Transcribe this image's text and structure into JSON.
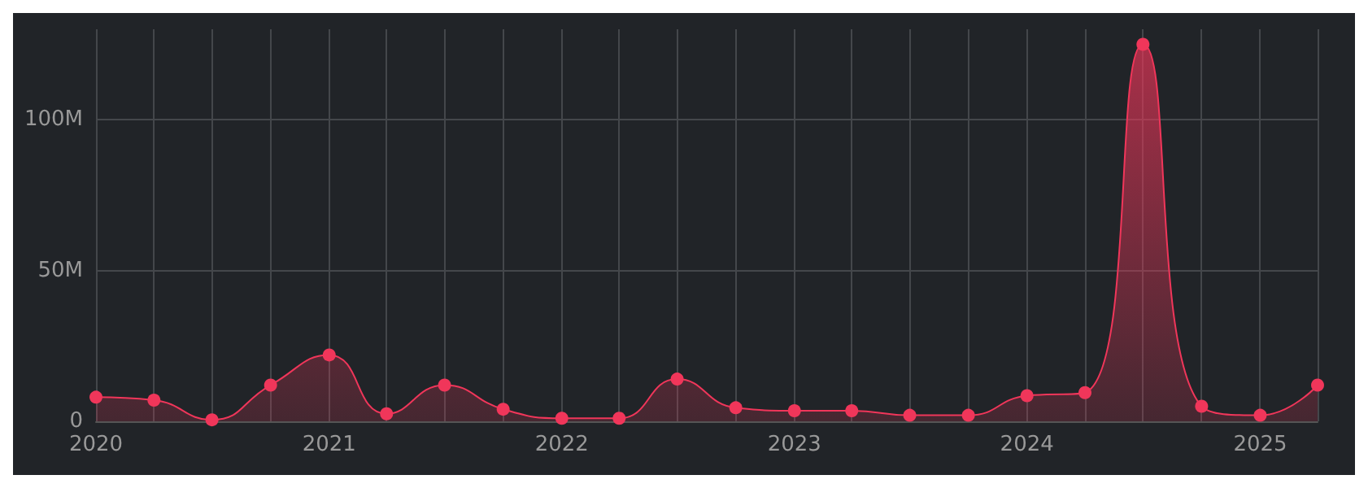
{
  "chart_data": {
    "type": "area",
    "x": [
      "2020-01",
      "2020-04",
      "2020-07",
      "2020-10",
      "2021-01",
      "2021-04",
      "2021-07",
      "2021-10",
      "2022-01",
      "2022-04",
      "2022-07",
      "2022-10",
      "2023-01",
      "2023-04",
      "2023-07",
      "2023-10",
      "2024-01",
      "2024-04",
      "2024-07",
      "2024-10",
      "2025-01",
      "2025-04"
    ],
    "series": [
      {
        "color": "#f0365a",
        "values": [
          8000000,
          7000000,
          500000,
          12000000,
          22000000,
          2500000,
          12000000,
          4000000,
          1000000,
          1000000,
          14000000,
          4500000,
          3500000,
          3500000,
          2000000,
          2000000,
          8500000,
          9500000,
          125000000,
          5000000,
          2000000,
          12000000
        ]
      }
    ],
    "xlim": [
      "2020-01",
      "2025-04"
    ],
    "xticks": [
      {
        "value": "2020-01",
        "label": "2020"
      },
      {
        "value": "2020-04",
        "label": null
      },
      {
        "value": "2020-07",
        "label": null
      },
      {
        "value": "2020-10",
        "label": null
      },
      {
        "value": "2021-01",
        "label": "2021"
      },
      {
        "value": "2021-04",
        "label": null
      },
      {
        "value": "2021-07",
        "label": null
      },
      {
        "value": "2021-10",
        "label": null
      },
      {
        "value": "2022-01",
        "label": "2022"
      },
      {
        "value": "2022-04",
        "label": null
      },
      {
        "value": "2022-07",
        "label": null
      },
      {
        "value": "2022-10",
        "label": null
      },
      {
        "value": "2023-01",
        "label": "2023"
      },
      {
        "value": "2023-04",
        "label": null
      },
      {
        "value": "2023-07",
        "label": null
      },
      {
        "value": "2023-10",
        "label": null
      },
      {
        "value": "2024-01",
        "label": "2024"
      },
      {
        "value": "2024-04",
        "label": null
      },
      {
        "value": "2024-07",
        "label": null
      },
      {
        "value": "2024-10",
        "label": null
      },
      {
        "value": "2025-01",
        "label": "2025"
      },
      {
        "value": "2025-04",
        "label": null
      }
    ],
    "ylim": [
      0,
      130000000
    ],
    "yticks": [
      {
        "value": 0,
        "label": "0"
      },
      {
        "value": 50000000,
        "label": "50M"
      },
      {
        "value": 100000000,
        "label": "100M"
      }
    ],
    "grid": true,
    "marker": "circle"
  }
}
